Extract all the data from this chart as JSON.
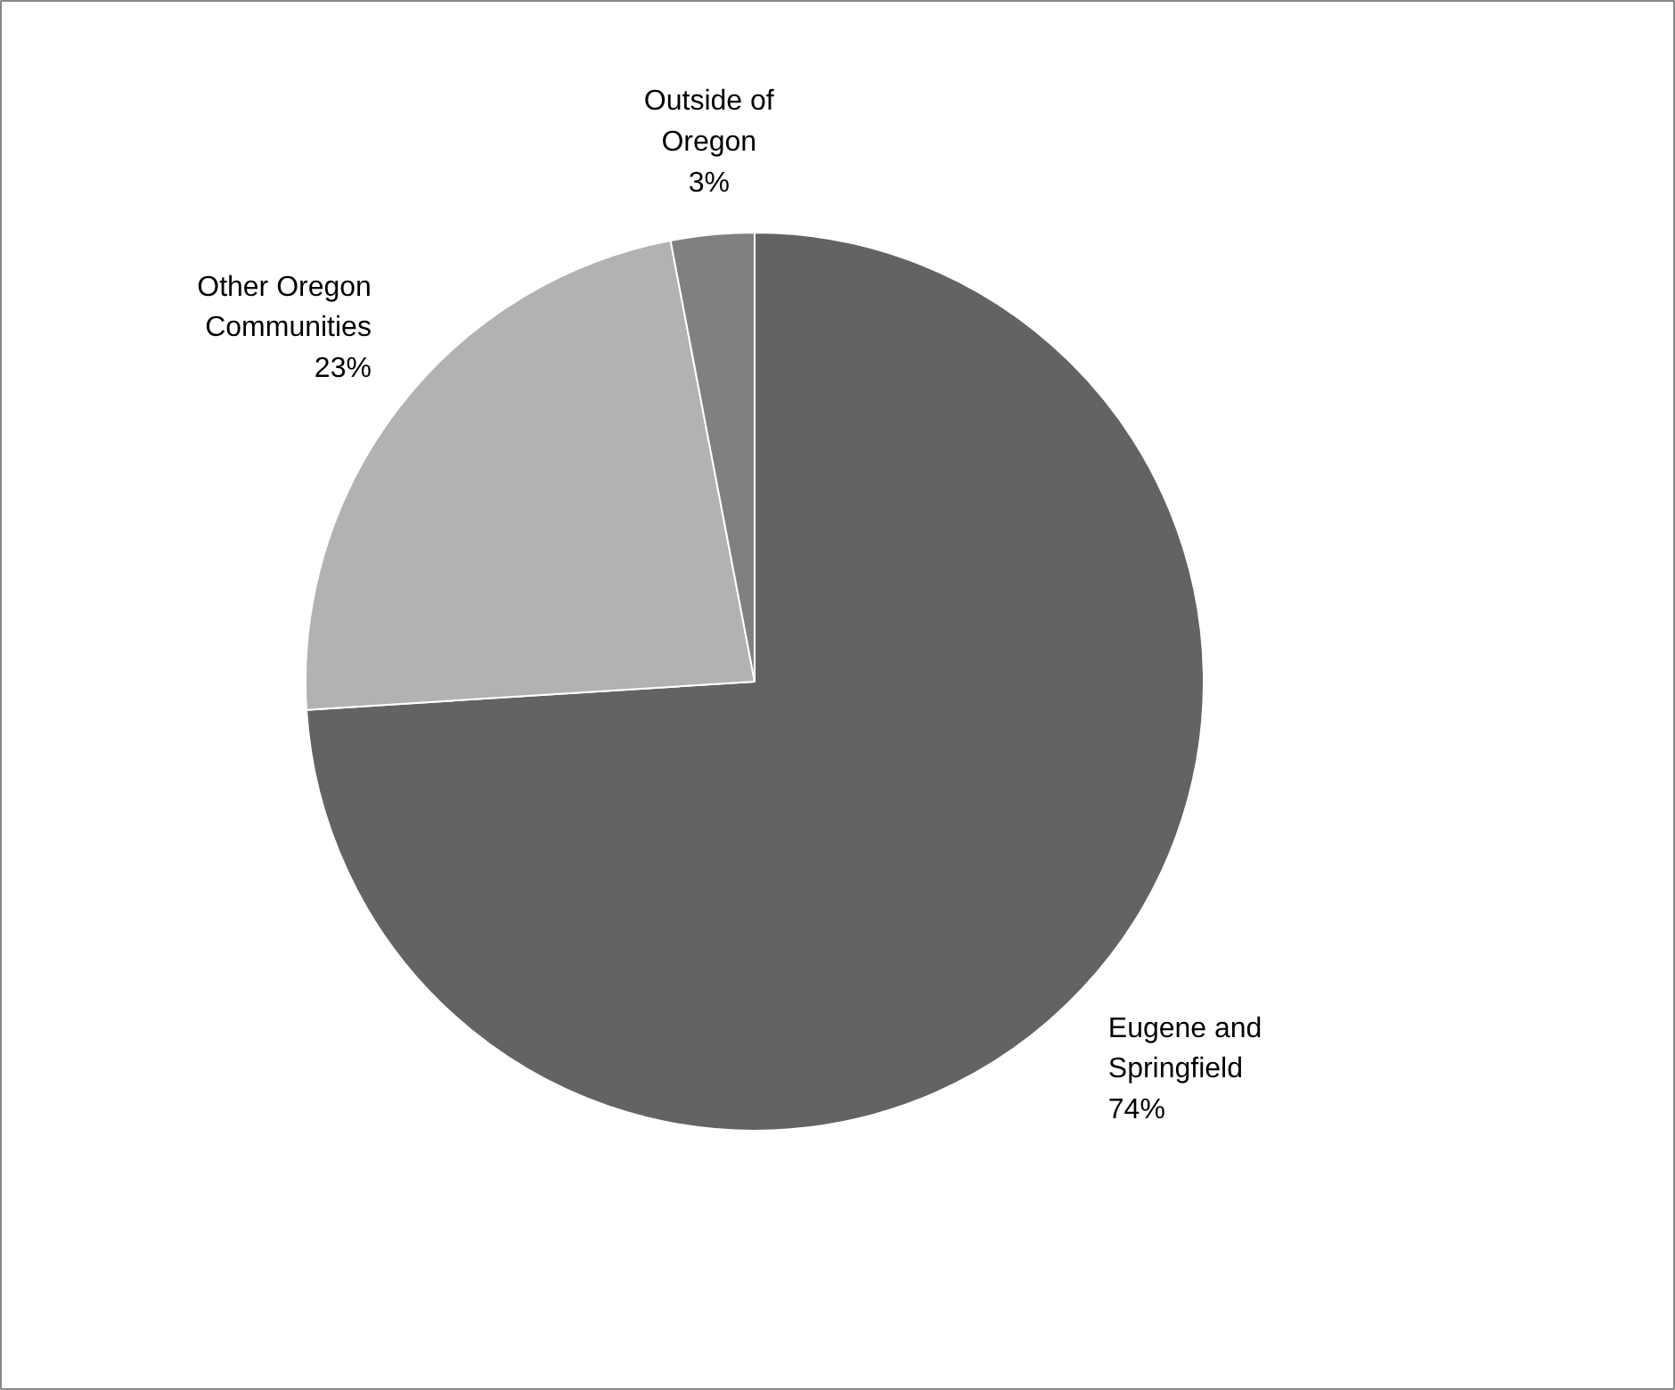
{
  "chart_data": {
    "type": "pie",
    "categories": [
      "Eugene and Springfield",
      "Other Oregon Communities",
      "Outside of Oregon"
    ],
    "values": [
      74,
      23,
      3
    ],
    "colors": [
      "#636363",
      "#b2b2b2",
      "#808080"
    ],
    "value_labels": [
      "74%",
      "23%",
      "3%"
    ]
  }
}
